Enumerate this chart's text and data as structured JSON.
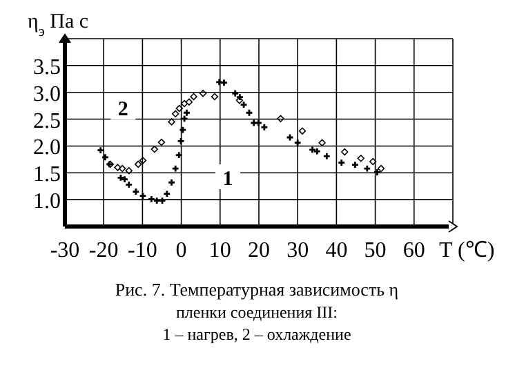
{
  "chart_data": {
    "type": "scatter",
    "ylabel": "η$_{э}$ Па с",
    "xlabel": "T (℃)",
    "xlim": [
      -30,
      70
    ],
    "ylim": [
      0.5,
      4.0
    ],
    "xticks": [
      -30,
      -20,
      -10,
      0,
      10,
      20,
      30,
      40,
      50,
      60,
      {
        "value": 70,
        "label": null
      }
    ],
    "yticks": [
      {
        "value": 0.5,
        "label": null
      },
      {
        "value": 1.0,
        "label": "1.0"
      },
      {
        "value": 1.5,
        "label": "1.5"
      },
      {
        "value": 2.0,
        "label": "2.0"
      },
      {
        "value": 2.5,
        "label": "2.5"
      },
      {
        "value": 3.0,
        "label": "3.0"
      },
      {
        "value": 3.5,
        "label": "3.5"
      },
      {
        "value": 4.0,
        "label": null
      }
    ],
    "grid": true,
    "series": [
      {
        "color": "#000000",
        "marker": "cross",
        "x": [
          -20.8,
          -19.6,
          -18.5,
          -15.6,
          -14.6,
          -13.5,
          -11.7,
          -9.9,
          -7.7,
          -6.3,
          -4.9,
          -3.7,
          -2.5,
          -1.5,
          -0.6,
          -0.1,
          0.4,
          0.8,
          1.4,
          9.8,
          11,
          13.9,
          15.1,
          16.1,
          17.5,
          18.7,
          19.9,
          21.4,
          28,
          30,
          33.8,
          35,
          37.5,
          41.3,
          44.8,
          47.9,
          50.5
        ],
        "values": [
          1.92,
          1.79,
          1.66,
          1.41,
          1.38,
          1.28,
          1.15,
          1.07,
          1.01,
          0.98,
          0.98,
          1.11,
          1.32,
          1.58,
          1.83,
          2.09,
          2.3,
          2.51,
          2.62,
          3.19,
          3.18,
          2.98,
          2.91,
          2.77,
          2.62,
          2.43,
          2.43,
          2.35,
          2.16,
          2.06,
          1.93,
          1.9,
          1.81,
          1.69,
          1.65,
          1.58,
          1.51
        ]
      },
      {
        "color": "#000000",
        "marker": "diamond",
        "x": [
          51.5,
          49.4,
          46.3,
          42.1,
          36.3,
          31.2,
          25.6,
          15,
          8.6,
          5.6,
          3.2,
          2,
          0.8,
          -0.5,
          -1.5,
          -2.5,
          -5.1,
          -6.9,
          -9.9,
          -11.1,
          -13.5,
          -15.2,
          -16.4,
          -18.3
        ],
        "values": [
          1.58,
          1.71,
          1.77,
          1.89,
          2.06,
          2.28,
          2.51,
          2.85,
          2.92,
          2.98,
          2.92,
          2.82,
          2.79,
          2.7,
          2.6,
          2.45,
          2.07,
          1.94,
          1.73,
          1.66,
          1.54,
          1.58,
          1.6,
          1.66
        ]
      }
    ],
    "annotations": [
      {
        "text": "1",
        "x": 12,
        "y": 1.4
      },
      {
        "text": "2",
        "x": -15,
        "y": 2.7
      },
      "Рис. 7.  Температурная зависимость η",
      "пленки соединения III:",
      "1 – нагрев,   2 – охлаждение"
    ]
  }
}
